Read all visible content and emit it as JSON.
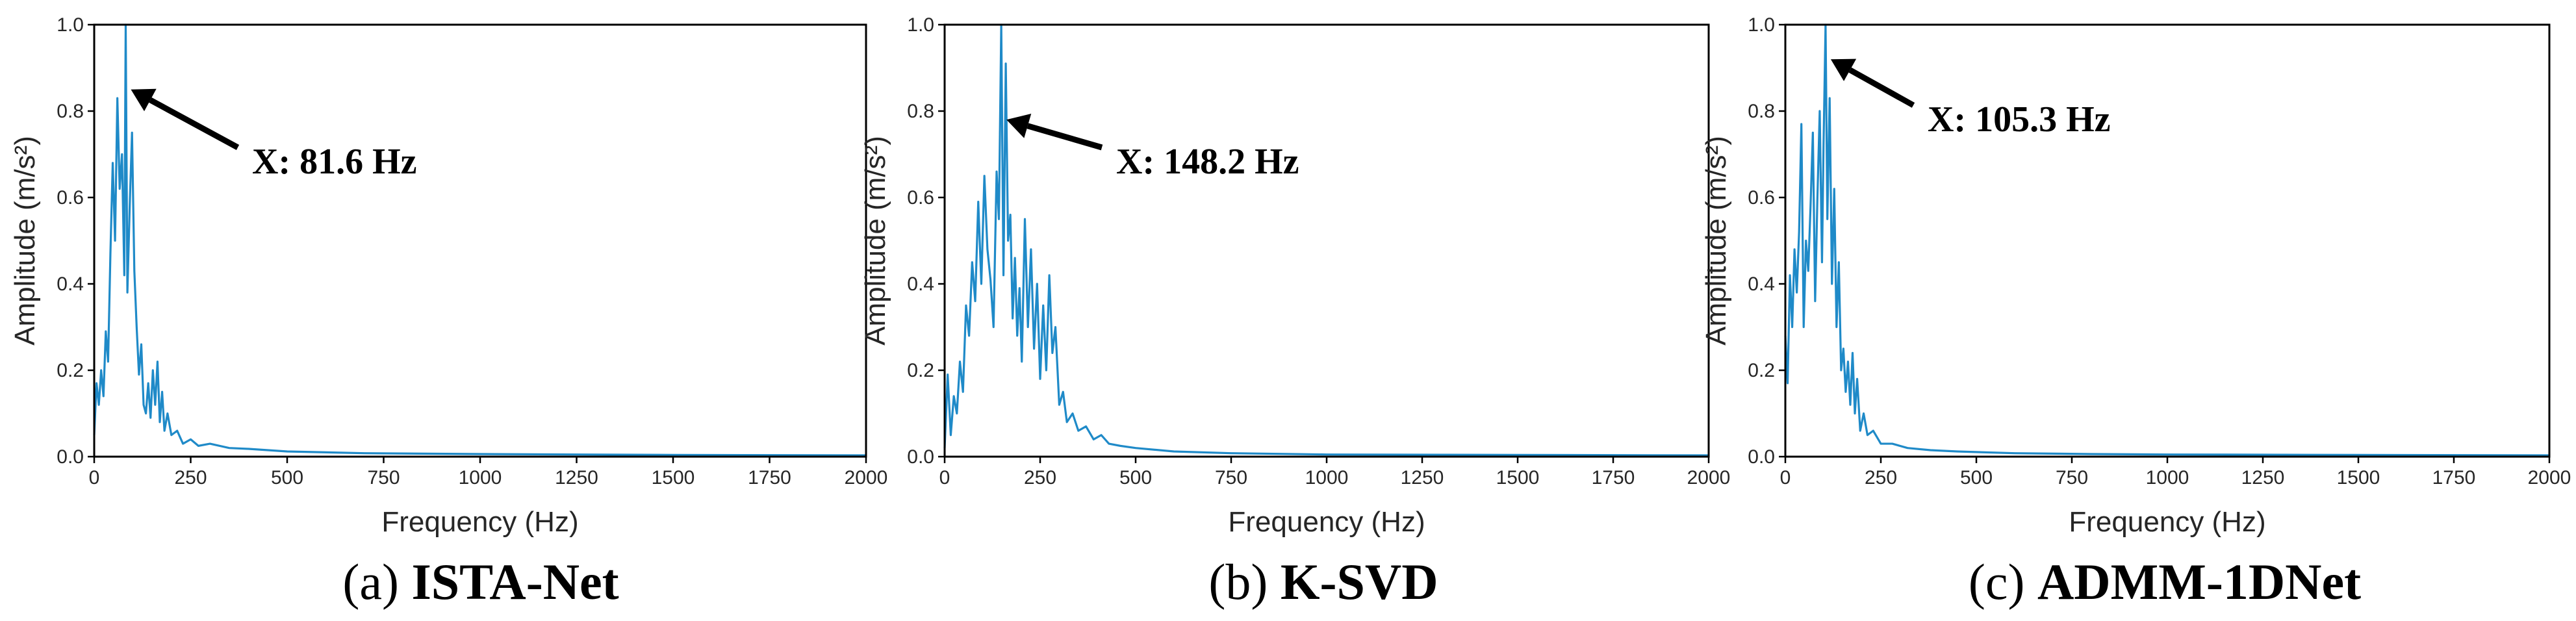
{
  "chart_data": [
    {
      "type": "line",
      "panel_letter": "(a)",
      "panel_name": "ISTA-Net",
      "xlabel": "Frequency (Hz)",
      "ylabel": "Amplitude (m/s²)",
      "xlim": [
        0,
        2000
      ],
      "ylim": [
        0,
        1.0
      ],
      "xticks": [
        0,
        250,
        500,
        750,
        1000,
        1250,
        1500,
        1750,
        2000
      ],
      "yticks": [
        0.0,
        0.2,
        0.4,
        0.6,
        0.8,
        1.0
      ],
      "grid": false,
      "line_color": "#1f8ac8",
      "series": [
        {
          "name": "spectrum",
          "x": [
            0,
            6,
            12,
            18,
            24,
            30,
            36,
            42,
            48,
            54,
            60,
            66,
            72,
            78,
            81.6,
            86,
            92,
            98,
            104,
            110,
            116,
            122,
            128,
            134,
            140,
            146,
            152,
            158,
            164,
            170,
            176,
            182,
            190,
            200,
            215,
            230,
            250,
            270,
            300,
            350,
            400,
            500,
            700,
            1000,
            1500,
            2000
          ],
          "values": [
            0.05,
            0.17,
            0.12,
            0.2,
            0.14,
            0.29,
            0.22,
            0.47,
            0.68,
            0.5,
            0.83,
            0.62,
            0.7,
            0.42,
            1.0,
            0.38,
            0.58,
            0.75,
            0.43,
            0.3,
            0.19,
            0.26,
            0.12,
            0.1,
            0.17,
            0.09,
            0.2,
            0.12,
            0.22,
            0.08,
            0.15,
            0.06,
            0.1,
            0.05,
            0.06,
            0.03,
            0.04,
            0.025,
            0.03,
            0.02,
            0.018,
            0.012,
            0.008,
            0.006,
            0.004,
            0.003
          ]
        }
      ],
      "annotation": {
        "text": "X: 81.6 Hz",
        "x": 81.6,
        "y": 0.85
      }
    },
    {
      "type": "line",
      "panel_letter": "(b)",
      "panel_name": "K-SVD",
      "xlabel": "Frequency (Hz)",
      "ylabel": "Amplitude (m/s²)",
      "xlim": [
        0,
        2000
      ],
      "ylim": [
        0,
        1.0
      ],
      "xticks": [
        0,
        250,
        500,
        750,
        1000,
        1250,
        1500,
        1750,
        2000
      ],
      "yticks": [
        0.0,
        0.2,
        0.4,
        0.6,
        0.8,
        1.0
      ],
      "grid": false,
      "line_color": "#1f8ac8",
      "series": [
        {
          "name": "spectrum",
          "x": [
            0,
            8,
            16,
            24,
            32,
            40,
            48,
            56,
            64,
            72,
            80,
            88,
            96,
            104,
            112,
            120,
            128,
            136,
            142,
            148.2,
            154,
            160,
            166,
            172,
            178,
            184,
            190,
            196,
            202,
            210,
            218,
            226,
            234,
            242,
            250,
            258,
            266,
            274,
            282,
            290,
            300,
            310,
            320,
            335,
            350,
            370,
            390,
            410,
            430,
            460,
            500,
            600,
            750,
            1000,
            1500,
            2000
          ],
          "values": [
            0.02,
            0.19,
            0.05,
            0.14,
            0.1,
            0.22,
            0.15,
            0.35,
            0.28,
            0.45,
            0.36,
            0.59,
            0.4,
            0.65,
            0.48,
            0.41,
            0.3,
            0.66,
            0.55,
            1.0,
            0.42,
            0.91,
            0.5,
            0.56,
            0.32,
            0.46,
            0.28,
            0.39,
            0.22,
            0.55,
            0.3,
            0.48,
            0.25,
            0.4,
            0.18,
            0.35,
            0.2,
            0.42,
            0.24,
            0.3,
            0.12,
            0.15,
            0.08,
            0.1,
            0.06,
            0.07,
            0.04,
            0.05,
            0.03,
            0.025,
            0.02,
            0.012,
            0.008,
            0.005,
            0.004,
            0.003
          ]
        }
      ],
      "annotation": {
        "text": "X: 148.2 Hz",
        "x": 148.2,
        "y": 0.78
      }
    },
    {
      "type": "line",
      "panel_letter": "(c)",
      "panel_name": "ADMM-1DNet",
      "xlabel": "Frequency (Hz)",
      "ylabel": "Amplitude (m/s²)",
      "xlim": [
        0,
        2000
      ],
      "ylim": [
        0,
        1.0
      ],
      "xticks": [
        0,
        250,
        500,
        750,
        1000,
        1250,
        1500,
        1750,
        2000
      ],
      "yticks": [
        0.0,
        0.2,
        0.4,
        0.6,
        0.8,
        1.0
      ],
      "grid": false,
      "line_color": "#1f8ac8",
      "series": [
        {
          "name": "spectrum",
          "x": [
            0,
            6,
            12,
            18,
            24,
            30,
            36,
            42,
            48,
            54,
            60,
            66,
            72,
            78,
            84,
            90,
            96,
            100,
            105.3,
            110,
            116,
            122,
            128,
            134,
            140,
            146,
            152,
            158,
            164,
            170,
            176,
            182,
            188,
            196,
            205,
            215,
            230,
            250,
            280,
            320,
            380,
            450,
            600,
            800,
            1000,
            1500,
            2000
          ],
          "values": [
            0.28,
            0.17,
            0.42,
            0.3,
            0.48,
            0.38,
            0.52,
            0.77,
            0.3,
            0.5,
            0.43,
            0.58,
            0.75,
            0.36,
            0.6,
            0.8,
            0.45,
            0.72,
            1.0,
            0.55,
            0.83,
            0.4,
            0.62,
            0.3,
            0.45,
            0.2,
            0.25,
            0.15,
            0.22,
            0.12,
            0.24,
            0.1,
            0.18,
            0.06,
            0.1,
            0.05,
            0.06,
            0.03,
            0.03,
            0.02,
            0.015,
            0.012,
            0.008,
            0.006,
            0.005,
            0.004,
            0.003
          ]
        }
      ],
      "annotation": {
        "text": "X: 105.3 Hz",
        "x": 105.3,
        "y": 0.92
      }
    }
  ]
}
